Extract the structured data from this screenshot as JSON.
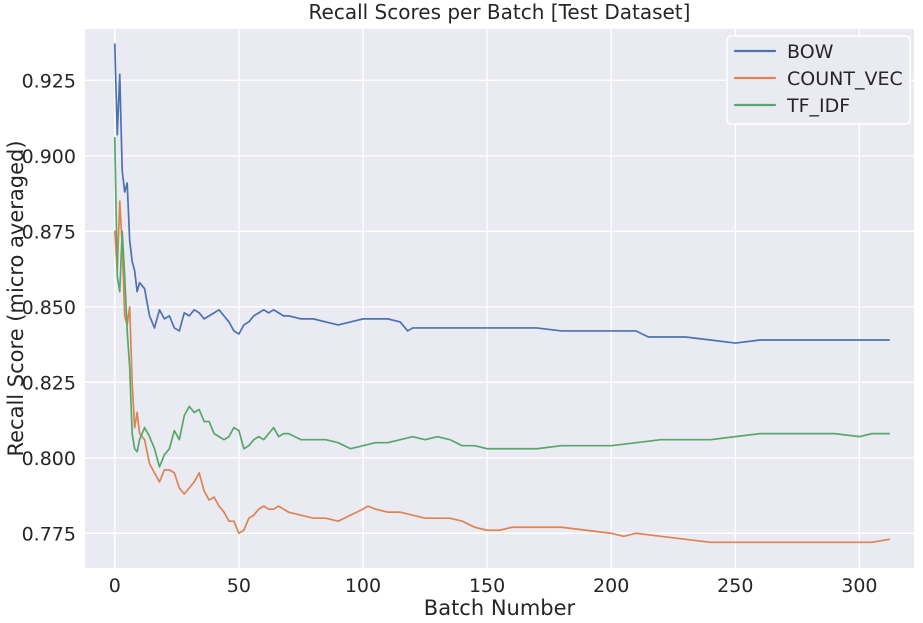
{
  "chart_data": {
    "type": "line",
    "title": "Recall Scores per Batch [Test Dataset]",
    "xlabel": "Batch Number",
    "ylabel": "Recall Score (micro averaged)",
    "xlim": [
      -12,
      322
    ],
    "ylim": [
      0.7635,
      0.942
    ],
    "xticks": [
      0,
      50,
      100,
      150,
      200,
      250,
      300
    ],
    "yticks": [
      0.775,
      0.8,
      0.825,
      0.85,
      0.875,
      0.9,
      0.925
    ],
    "ytick_labels": [
      "0.775",
      "0.800",
      "0.825",
      "0.850",
      "0.875",
      "0.900",
      "0.925"
    ],
    "grid": true,
    "legend_position": "top-right",
    "colors": {
      "background": "#eaeaf2",
      "grid": "#ffffff"
    },
    "series": [
      {
        "name": "BOW",
        "color": "#4c72b0",
        "points": [
          [
            0,
            0.937
          ],
          [
            1,
            0.907
          ],
          [
            2,
            0.927
          ],
          [
            3,
            0.895
          ],
          [
            4,
            0.888
          ],
          [
            5,
            0.891
          ],
          [
            6,
            0.872
          ],
          [
            7,
            0.865
          ],
          [
            8,
            0.862
          ],
          [
            9,
            0.855
          ],
          [
            10,
            0.858
          ],
          [
            12,
            0.856
          ],
          [
            14,
            0.847
          ],
          [
            16,
            0.843
          ],
          [
            18,
            0.849
          ],
          [
            20,
            0.846
          ],
          [
            22,
            0.847
          ],
          [
            24,
            0.843
          ],
          [
            26,
            0.842
          ],
          [
            28,
            0.848
          ],
          [
            30,
            0.847
          ],
          [
            32,
            0.849
          ],
          [
            34,
            0.848
          ],
          [
            36,
            0.846
          ],
          [
            38,
            0.847
          ],
          [
            40,
            0.848
          ],
          [
            42,
            0.849
          ],
          [
            44,
            0.847
          ],
          [
            46,
            0.845
          ],
          [
            48,
            0.842
          ],
          [
            50,
            0.841
          ],
          [
            52,
            0.844
          ],
          [
            54,
            0.845
          ],
          [
            56,
            0.847
          ],
          [
            58,
            0.848
          ],
          [
            60,
            0.849
          ],
          [
            62,
            0.848
          ],
          [
            64,
            0.849
          ],
          [
            66,
            0.848
          ],
          [
            68,
            0.847
          ],
          [
            70,
            0.847
          ],
          [
            75,
            0.846
          ],
          [
            80,
            0.846
          ],
          [
            85,
            0.845
          ],
          [
            90,
            0.844
          ],
          [
            95,
            0.845
          ],
          [
            100,
            0.846
          ],
          [
            105,
            0.846
          ],
          [
            110,
            0.846
          ],
          [
            115,
            0.845
          ],
          [
            118,
            0.842
          ],
          [
            120,
            0.843
          ],
          [
            130,
            0.843
          ],
          [
            140,
            0.843
          ],
          [
            150,
            0.843
          ],
          [
            160,
            0.843
          ],
          [
            170,
            0.843
          ],
          [
            180,
            0.842
          ],
          [
            190,
            0.842
          ],
          [
            200,
            0.842
          ],
          [
            210,
            0.842
          ],
          [
            215,
            0.84
          ],
          [
            220,
            0.84
          ],
          [
            230,
            0.84
          ],
          [
            240,
            0.839
          ],
          [
            250,
            0.838
          ],
          [
            260,
            0.839
          ],
          [
            270,
            0.839
          ],
          [
            280,
            0.839
          ],
          [
            290,
            0.839
          ],
          [
            300,
            0.839
          ],
          [
            305,
            0.839
          ],
          [
            312,
            0.839
          ]
        ]
      },
      {
        "name": "COUNT_VEC",
        "color": "#dd8452",
        "points": [
          [
            0,
            0.875
          ],
          [
            1,
            0.862
          ],
          [
            2,
            0.885
          ],
          [
            3,
            0.87
          ],
          [
            4,
            0.847
          ],
          [
            5,
            0.844
          ],
          [
            6,
            0.85
          ],
          [
            7,
            0.825
          ],
          [
            8,
            0.81
          ],
          [
            9,
            0.815
          ],
          [
            10,
            0.808
          ],
          [
            12,
            0.806
          ],
          [
            14,
            0.798
          ],
          [
            16,
            0.795
          ],
          [
            18,
            0.792
          ],
          [
            20,
            0.796
          ],
          [
            22,
            0.796
          ],
          [
            24,
            0.795
          ],
          [
            26,
            0.79
          ],
          [
            28,
            0.788
          ],
          [
            30,
            0.79
          ],
          [
            32,
            0.792
          ],
          [
            34,
            0.795
          ],
          [
            36,
            0.789
          ],
          [
            38,
            0.786
          ],
          [
            40,
            0.787
          ],
          [
            42,
            0.784
          ],
          [
            44,
            0.782
          ],
          [
            46,
            0.779
          ],
          [
            48,
            0.779
          ],
          [
            50,
            0.775
          ],
          [
            52,
            0.776
          ],
          [
            54,
            0.78
          ],
          [
            56,
            0.781
          ],
          [
            58,
            0.783
          ],
          [
            60,
            0.784
          ],
          [
            62,
            0.783
          ],
          [
            64,
            0.783
          ],
          [
            66,
            0.784
          ],
          [
            68,
            0.783
          ],
          [
            70,
            0.782
          ],
          [
            75,
            0.781
          ],
          [
            80,
            0.78
          ],
          [
            85,
            0.78
          ],
          [
            90,
            0.779
          ],
          [
            95,
            0.781
          ],
          [
            100,
            0.783
          ],
          [
            102,
            0.784
          ],
          [
            105,
            0.783
          ],
          [
            110,
            0.782
          ],
          [
            115,
            0.782
          ],
          [
            120,
            0.781
          ],
          [
            125,
            0.78
          ],
          [
            130,
            0.78
          ],
          [
            135,
            0.78
          ],
          [
            140,
            0.779
          ],
          [
            145,
            0.777
          ],
          [
            150,
            0.776
          ],
          [
            155,
            0.776
          ],
          [
            160,
            0.777
          ],
          [
            170,
            0.777
          ],
          [
            180,
            0.777
          ],
          [
            190,
            0.776
          ],
          [
            200,
            0.775
          ],
          [
            205,
            0.774
          ],
          [
            210,
            0.775
          ],
          [
            220,
            0.774
          ],
          [
            230,
            0.773
          ],
          [
            240,
            0.772
          ],
          [
            250,
            0.772
          ],
          [
            260,
            0.772
          ],
          [
            270,
            0.772
          ],
          [
            280,
            0.772
          ],
          [
            290,
            0.772
          ],
          [
            300,
            0.772
          ],
          [
            305,
            0.772
          ],
          [
            312,
            0.773
          ]
        ]
      },
      {
        "name": "TF_IDF",
        "color": "#55a868",
        "points": [
          [
            0,
            0.906
          ],
          [
            1,
            0.86
          ],
          [
            2,
            0.855
          ],
          [
            3,
            0.875
          ],
          [
            4,
            0.86
          ],
          [
            5,
            0.842
          ],
          [
            6,
            0.83
          ],
          [
            7,
            0.808
          ],
          [
            8,
            0.803
          ],
          [
            9,
            0.802
          ],
          [
            10,
            0.806
          ],
          [
            12,
            0.81
          ],
          [
            14,
            0.807
          ],
          [
            16,
            0.803
          ],
          [
            18,
            0.797
          ],
          [
            20,
            0.801
          ],
          [
            22,
            0.803
          ],
          [
            24,
            0.809
          ],
          [
            26,
            0.806
          ],
          [
            28,
            0.814
          ],
          [
            30,
            0.817
          ],
          [
            32,
            0.815
          ],
          [
            34,
            0.816
          ],
          [
            36,
            0.812
          ],
          [
            38,
            0.812
          ],
          [
            40,
            0.808
          ],
          [
            42,
            0.807
          ],
          [
            44,
            0.806
          ],
          [
            46,
            0.807
          ],
          [
            48,
            0.81
          ],
          [
            50,
            0.809
          ],
          [
            52,
            0.803
          ],
          [
            54,
            0.804
          ],
          [
            56,
            0.806
          ],
          [
            58,
            0.807
          ],
          [
            60,
            0.806
          ],
          [
            62,
            0.808
          ],
          [
            64,
            0.81
          ],
          [
            66,
            0.807
          ],
          [
            68,
            0.808
          ],
          [
            70,
            0.808
          ],
          [
            75,
            0.806
          ],
          [
            80,
            0.806
          ],
          [
            85,
            0.806
          ],
          [
            90,
            0.805
          ],
          [
            95,
            0.803
          ],
          [
            100,
            0.804
          ],
          [
            105,
            0.805
          ],
          [
            110,
            0.805
          ],
          [
            115,
            0.806
          ],
          [
            120,
            0.807
          ],
          [
            125,
            0.806
          ],
          [
            130,
            0.807
          ],
          [
            135,
            0.806
          ],
          [
            140,
            0.804
          ],
          [
            145,
            0.804
          ],
          [
            150,
            0.803
          ],
          [
            160,
            0.803
          ],
          [
            170,
            0.803
          ],
          [
            180,
            0.804
          ],
          [
            190,
            0.804
          ],
          [
            200,
            0.804
          ],
          [
            210,
            0.805
          ],
          [
            220,
            0.806
          ],
          [
            230,
            0.806
          ],
          [
            240,
            0.806
          ],
          [
            250,
            0.807
          ],
          [
            260,
            0.808
          ],
          [
            270,
            0.808
          ],
          [
            280,
            0.808
          ],
          [
            290,
            0.808
          ],
          [
            300,
            0.807
          ],
          [
            305,
            0.808
          ],
          [
            312,
            0.808
          ]
        ]
      }
    ]
  }
}
